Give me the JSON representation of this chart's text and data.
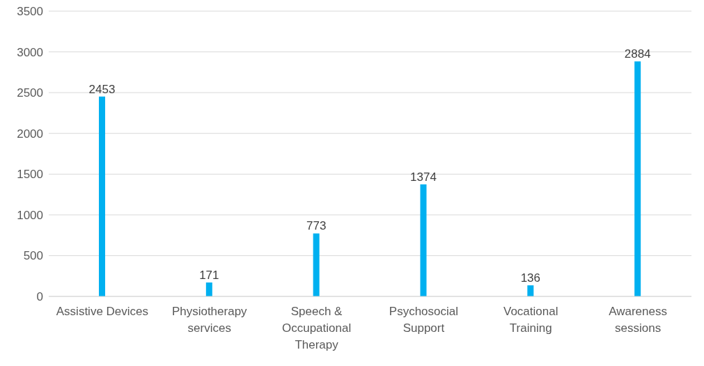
{
  "chart_data": {
    "type": "bar",
    "categories": [
      "Assistive Devices",
      "Physiotherapy services",
      "Speech & Occupational Therapy",
      "Psychosocial Support",
      "Vocational Training",
      "Awareness sessions"
    ],
    "values": [
      2453,
      171,
      773,
      1374,
      136,
      2884
    ],
    "color": "#00b0f0",
    "ylim": [
      0,
      3500
    ],
    "yticks": [
      0,
      500,
      1000,
      1500,
      2000,
      2500,
      3000,
      3500
    ],
    "grid": "y",
    "data_labels": true
  }
}
